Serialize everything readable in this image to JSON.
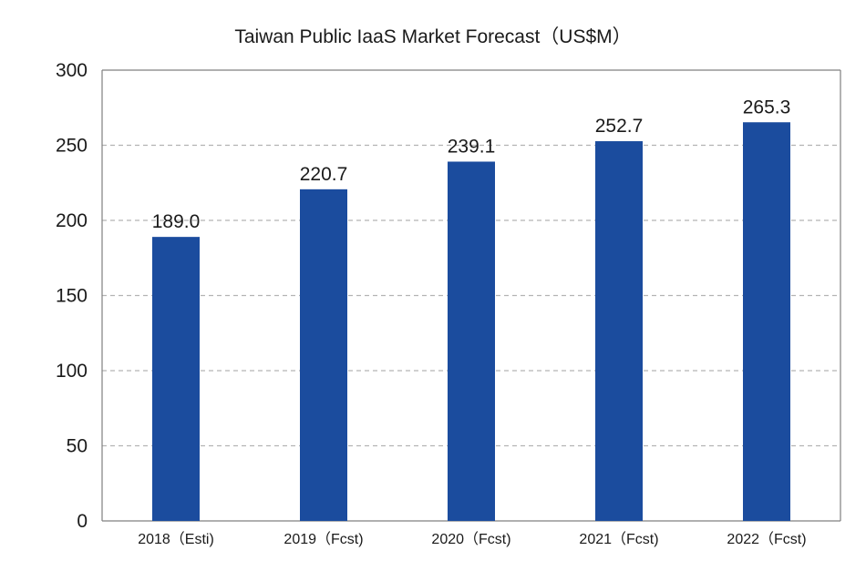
{
  "chart_data": {
    "type": "bar",
    "title": "Taiwan Public IaaS Market Forecast（US$M）",
    "categories": [
      "2018（Esti)",
      "2019（Fcst)",
      "2020（Fcst)",
      "2021（Fcst)",
      "2022（Fcst)"
    ],
    "values": [
      189.0,
      220.7,
      239.1,
      252.7,
      265.3
    ],
    "value_labels": [
      "189.0",
      "220.7",
      "239.1",
      "252.7",
      "265.3"
    ],
    "ylim": [
      0,
      300
    ],
    "yticks": [
      0,
      50,
      100,
      150,
      200,
      250,
      300
    ],
    "xlabel": "",
    "ylabel": "",
    "grid": true,
    "bar_color": "#1b4c9e",
    "grid_color": "#b3b3b3",
    "axis_color": "#808080"
  }
}
